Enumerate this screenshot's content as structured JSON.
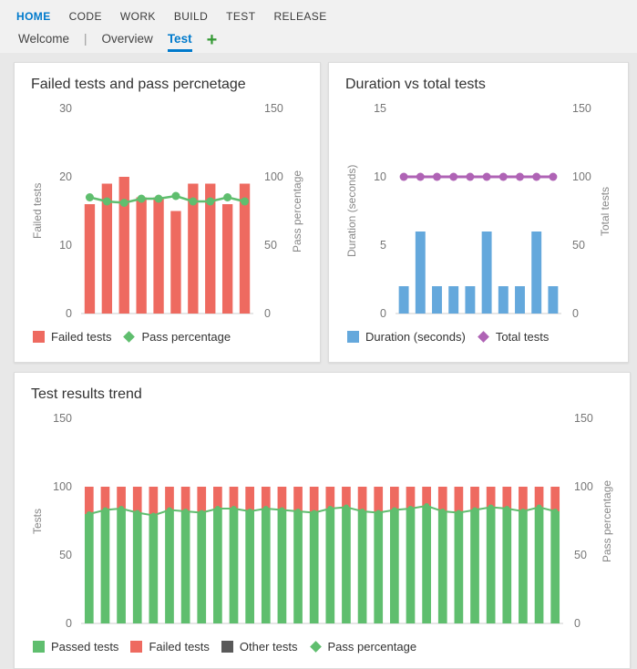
{
  "nav": {
    "items": [
      {
        "label": "HOME",
        "active": true
      },
      {
        "label": "CODE",
        "active": false
      },
      {
        "label": "WORK",
        "active": false
      },
      {
        "label": "BUILD",
        "active": false
      },
      {
        "label": "TEST",
        "active": false
      },
      {
        "label": "RELEASE",
        "active": false
      }
    ],
    "tab_separator": "|",
    "tabs": [
      {
        "label": "Welcome",
        "active": false
      },
      {
        "label": "Overview",
        "active": false
      },
      {
        "label": "Test",
        "active": true
      }
    ],
    "add_tab_label": "+"
  },
  "colors": {
    "nav_active_blue": "#007acc",
    "add_tab_green": "#339933",
    "failed_red": "#ee6a60",
    "passed_green": "#5fbe6e",
    "duration_blue": "#64a8dc",
    "total_purple": "#af63b5",
    "other_gray": "#595959",
    "page_bg": "#e8e8e8",
    "card_bg": "#ffffff"
  },
  "chart_data": [
    {
      "type": "bar",
      "title": "Failed tests and pass percnetage",
      "bar_frac": 0.6,
      "left_axis": {
        "label": "Failed tests",
        "max": 30,
        "ticks": [
          30,
          20,
          10,
          0
        ]
      },
      "right_axis": {
        "label": "Pass percentage",
        "max": 150,
        "ticks": [
          150,
          100,
          50,
          0
        ]
      },
      "series": [
        {
          "name": "Failed tests",
          "type": "bar",
          "axis": "left",
          "color": "#ee6a60",
          "values": [
            16,
            19,
            20,
            17,
            17,
            15,
            19,
            19,
            16,
            19
          ]
        },
        {
          "name": "Pass percentage",
          "type": "line",
          "axis": "right",
          "color": "#5fbe6e",
          "width": 2.5,
          "marker_r": 4.5,
          "values": [
            85,
            82,
            81,
            84,
            84,
            86,
            82,
            82,
            85,
            82
          ]
        }
      ],
      "legend": [
        {
          "label": "Failed tests",
          "color": "#ee6a60",
          "shape": "square"
        },
        {
          "label": "Pass percentage",
          "color": "#5fbe6e",
          "shape": "diamond"
        }
      ]
    },
    {
      "type": "bar",
      "title": "Duration vs total tests",
      "bar_frac": 0.6,
      "left_axis": {
        "label": "Duration (seconds)",
        "max": 15,
        "ticks": [
          15,
          10,
          5,
          0
        ]
      },
      "right_axis": {
        "label": "Total tests",
        "max": 150,
        "ticks": [
          150,
          100,
          50,
          0
        ]
      },
      "series": [
        {
          "name": "Duration (seconds)",
          "type": "bar",
          "axis": "left",
          "color": "#64a8dc",
          "values": [
            2,
            6,
            2,
            2,
            2,
            6,
            2,
            2,
            6,
            2
          ]
        },
        {
          "name": "Total tests",
          "type": "line",
          "axis": "right",
          "color": "#af63b5",
          "width": 3,
          "marker_r": 4.5,
          "values": [
            100,
            100,
            100,
            100,
            100,
            100,
            100,
            100,
            100,
            100
          ]
        }
      ],
      "legend": [
        {
          "label": "Duration (seconds)",
          "color": "#64a8dc",
          "shape": "square"
        },
        {
          "label": "Total tests",
          "color": "#af63b5",
          "shape": "diamond"
        }
      ]
    },
    {
      "type": "bar",
      "title": "Test results trend",
      "bar_frac": 0.55,
      "left_axis": {
        "label": "Tests",
        "max": 150,
        "ticks": [
          150,
          100,
          50,
          0
        ]
      },
      "right_axis": {
        "label": "Pass percentage",
        "max": 150,
        "ticks": [
          150,
          100,
          50,
          0
        ]
      },
      "series": [
        {
          "name": "Passed tests",
          "type": "bar",
          "axis": "left",
          "color": "#5fbe6e",
          "values": [
            80,
            83,
            84,
            81,
            79,
            83,
            82,
            81,
            84,
            84,
            82,
            84,
            83,
            82,
            81,
            84,
            85,
            82,
            81,
            83,
            84,
            86,
            82,
            81,
            83,
            85,
            84,
            82,
            85,
            82
          ]
        },
        {
          "name": "Failed tests",
          "type": "bar",
          "axis": "left",
          "color": "#ee6a60",
          "stack_on": "Passed tests",
          "values": [
            20,
            17,
            16,
            19,
            21,
            17,
            18,
            19,
            16,
            16,
            18,
            16,
            17,
            18,
            19,
            16,
            15,
            18,
            19,
            17,
            16,
            14,
            18,
            19,
            17,
            15,
            16,
            18,
            15,
            18
          ]
        },
        {
          "name": "Other tests",
          "type": "bar",
          "axis": "left",
          "color": "#595959",
          "stack_on": [
            "Passed tests",
            "Failed tests"
          ],
          "values": [
            0,
            0,
            0,
            0,
            0,
            0,
            0,
            0,
            0,
            0,
            0,
            0,
            0,
            0,
            0,
            0,
            0,
            0,
            0,
            0,
            0,
            0,
            0,
            0,
            0,
            0,
            0,
            0,
            0,
            0
          ]
        },
        {
          "name": "Pass percentage",
          "type": "line",
          "axis": "right",
          "color": "#5fbe6e",
          "width": 2,
          "marker_r": 3,
          "values": [
            80,
            83,
            84,
            81,
            79,
            83,
            82,
            81,
            84,
            84,
            82,
            84,
            83,
            82,
            81,
            84,
            85,
            82,
            81,
            83,
            84,
            86,
            82,
            81,
            83,
            85,
            84,
            82,
            85,
            82
          ]
        }
      ],
      "legend": [
        {
          "label": "Passed tests",
          "color": "#5fbe6e",
          "shape": "square"
        },
        {
          "label": "Failed tests",
          "color": "#ee6a60",
          "shape": "square"
        },
        {
          "label": "Other tests",
          "color": "#595959",
          "shape": "square"
        },
        {
          "label": "Pass percentage",
          "color": "#5fbe6e",
          "shape": "diamond"
        }
      ]
    }
  ]
}
